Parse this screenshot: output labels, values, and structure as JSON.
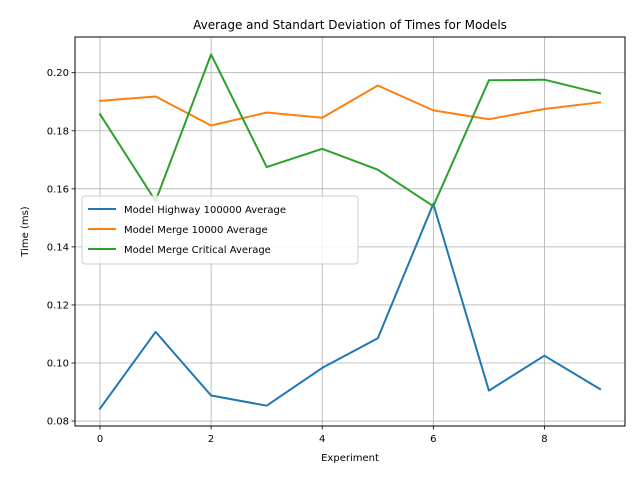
{
  "chart_data": {
    "type": "line",
    "title": "Average and Standart Deviation of Times for Models",
    "xlabel": "Experiment",
    "ylabel": "Time (ms)",
    "x": [
      0,
      1,
      2,
      3,
      4,
      5,
      6,
      7,
      8,
      9
    ],
    "xlim": [
      -0.45,
      9.45
    ],
    "ylim": [
      0.0783,
      0.2123
    ],
    "xticks": [
      0,
      2,
      4,
      6,
      8
    ],
    "xtick_labels": [
      "0",
      "2",
      "4",
      "6",
      "8"
    ],
    "yticks": [
      0.08,
      0.1,
      0.12,
      0.14,
      0.16,
      0.18,
      0.2
    ],
    "ytick_labels": [
      "0.08",
      "0.10",
      "0.12",
      "0.14",
      "0.16",
      "0.18",
      "0.20"
    ],
    "grid": true,
    "legend_position": "center-left",
    "series": [
      {
        "name": "Model Highway 100000 Average",
        "color": "#1f77b4",
        "values": [
          0.0843,
          0.1107,
          0.0888,
          0.0853,
          0.0983,
          0.1085,
          0.1548,
          0.0905,
          0.1025,
          0.091
        ]
      },
      {
        "name": "Model Merge 10000 Average",
        "color": "#ff7f0e",
        "values": [
          0.1903,
          0.1918,
          0.1818,
          0.1863,
          0.1845,
          0.1956,
          0.187,
          0.184,
          0.1875,
          0.1898
        ]
      },
      {
        "name": "Model Merge Critical Average",
        "color": "#2ca02c",
        "values": [
          0.1857,
          0.1558,
          0.2063,
          0.1675,
          0.1738,
          0.1666,
          0.154,
          0.1974,
          0.1976,
          0.1929
        ]
      }
    ]
  }
}
